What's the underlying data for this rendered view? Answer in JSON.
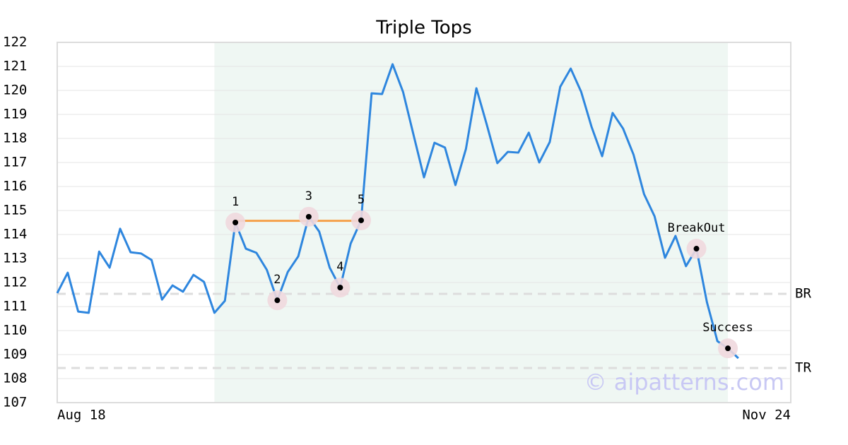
{
  "chart_data": {
    "type": "line",
    "title": "Triple Tops",
    "categories": [
      "Aug 18",
      null,
      null,
      null,
      null,
      null,
      null,
      null,
      null,
      null,
      null,
      null,
      null,
      null,
      null,
      null,
      null,
      null,
      null,
      null,
      null,
      null,
      null,
      null,
      null,
      null,
      null,
      null,
      null,
      null,
      null,
      null,
      null,
      null,
      null,
      null,
      null,
      null,
      null,
      null,
      null,
      null,
      null,
      null,
      null,
      null,
      null,
      null,
      null,
      null,
      null,
      null,
      null,
      null,
      null,
      null,
      null,
      null,
      null,
      null,
      null,
      null,
      null,
      null,
      null,
      null,
      null,
      null,
      null,
      null,
      "Nov 24"
    ],
    "series": [
      {
        "color": "#2e86de",
        "values": [
          111.56,
          112.41,
          110.79,
          110.74,
          113.29,
          112.62,
          114.24,
          113.26,
          113.21,
          112.94,
          111.29,
          111.88,
          111.62,
          112.32,
          112.03,
          110.74,
          111.24,
          114.5,
          113.41,
          113.24,
          112.53,
          111.26,
          112.44,
          113.09,
          114.74,
          114.12,
          112.62,
          111.79,
          113.62,
          114.59,
          119.88,
          119.85,
          121.09,
          119.94,
          118.15,
          116.38,
          117.82,
          117.62,
          116.06,
          117.56,
          120.09,
          118.56,
          116.97,
          117.44,
          117.41,
          118.24,
          117.0,
          117.85,
          120.15,
          120.91,
          119.94,
          118.47,
          117.26,
          119.06,
          118.41,
          117.32,
          115.68,
          114.76,
          113.03,
          113.94,
          112.68,
          113.41,
          111.18,
          109.56,
          109.26,
          108.85,
          null,
          null,
          null,
          null,
          null
        ]
      }
    ],
    "ylim": [
      107,
      122
    ],
    "yticks": [
      107,
      108,
      109,
      110,
      111,
      112,
      113,
      114,
      115,
      116,
      117,
      118,
      119,
      120,
      121,
      122
    ],
    "grid": true,
    "highlight_range": [
      15,
      64
    ],
    "pattern_line": {
      "color": "#f5a04a",
      "from": 17,
      "to": 29,
      "value": 114.57
    },
    "levels": [
      {
        "label": "BR",
        "value": 111.53
      },
      {
        "label": "TR",
        "value": 108.44
      }
    ],
    "points": [
      {
        "label": "1",
        "x": 17,
        "value": 114.5
      },
      {
        "label": "2",
        "x": 21,
        "value": 111.26
      },
      {
        "label": "3",
        "x": 24,
        "value": 114.74
      },
      {
        "label": "4",
        "x": 27,
        "value": 111.79
      },
      {
        "label": "5",
        "x": 29,
        "value": 114.59
      },
      {
        "label": "BreakOut",
        "x": 61,
        "value": 113.41
      },
      {
        "label": "Success",
        "x": 64,
        "value": 109.26
      }
    ],
    "watermark": "© aipatterns.com"
  }
}
